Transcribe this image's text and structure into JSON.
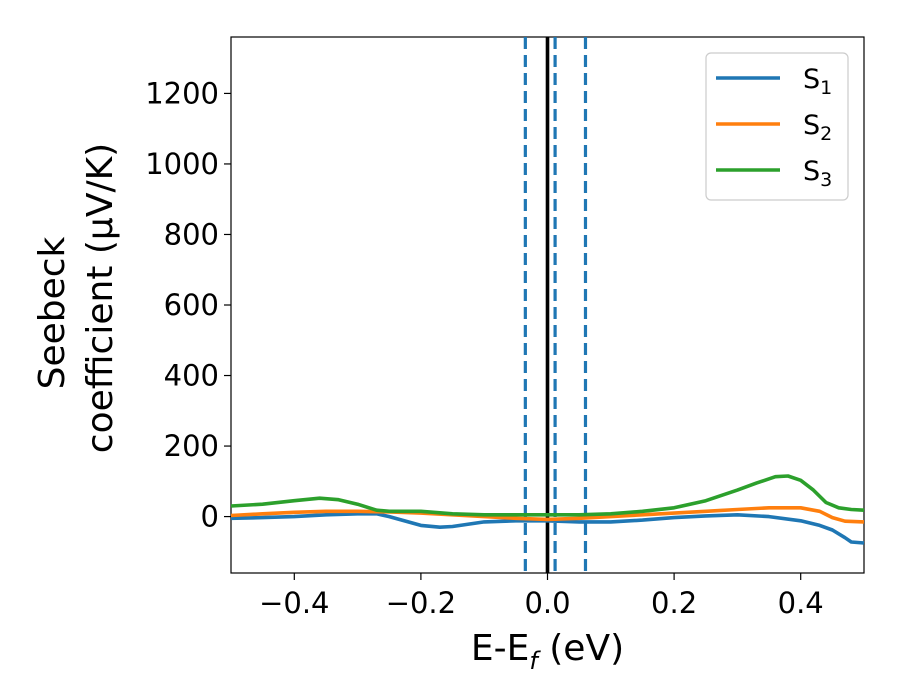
{
  "chart_data": {
    "type": "line",
    "xlabel": {
      "main": "E-E",
      "sub": "f",
      "tail": " (eV)"
    },
    "ylabel": {
      "line1": "Seebeck",
      "line2": "coefficient  (μV/K)"
    },
    "xlim": [
      -0.5,
      0.5
    ],
    "ylim": [
      -160,
      1360
    ],
    "xticks": [
      -0.4,
      -0.2,
      0.0,
      0.2,
      0.4
    ],
    "xtick_labels": [
      "−0.4",
      "−0.2",
      "0.0",
      "0.2",
      "0.4"
    ],
    "yticks": [
      0,
      200,
      400,
      600,
      800,
      1000,
      1200
    ],
    "ytick_labels": [
      "0",
      "200",
      "400",
      "600",
      "800",
      "1000",
      "1200"
    ],
    "legend_position": "top-right",
    "vlines": [
      {
        "x": -0.035,
        "style": "dashed",
        "color": "#1f77b4"
      },
      {
        "x": 0.0,
        "style": "solid",
        "color": "#000000"
      },
      {
        "x": 0.012,
        "style": "dashed",
        "color": "#1f77b4"
      },
      {
        "x": 0.06,
        "style": "dashed",
        "color": "#1f77b4"
      }
    ],
    "series": [
      {
        "name": "S",
        "sub": "1",
        "color": "#1f77b4",
        "x": [
          -0.5,
          -0.45,
          -0.4,
          -0.35,
          -0.3,
          -0.27,
          -0.25,
          -0.2,
          -0.17,
          -0.15,
          -0.1,
          -0.05,
          0.0,
          0.05,
          0.1,
          0.15,
          0.2,
          0.25,
          0.3,
          0.35,
          0.4,
          0.43,
          0.45,
          0.47,
          0.48,
          0.5
        ],
        "y": [
          -5,
          -3,
          0,
          5,
          8,
          8,
          0,
          -25,
          -30,
          -28,
          -15,
          -12,
          -12,
          -15,
          -15,
          -10,
          -3,
          2,
          5,
          0,
          -12,
          -25,
          -38,
          -60,
          -72,
          -75
        ]
      },
      {
        "name": "S",
        "sub": "2",
        "color": "#ff7f0e",
        "x": [
          -0.5,
          -0.45,
          -0.4,
          -0.35,
          -0.3,
          -0.25,
          -0.2,
          -0.15,
          -0.1,
          -0.05,
          0.0,
          0.05,
          0.1,
          0.15,
          0.2,
          0.25,
          0.3,
          0.35,
          0.4,
          0.43,
          0.45,
          0.47,
          0.5
        ],
        "y": [
          3,
          8,
          12,
          15,
          15,
          13,
          10,
          5,
          0,
          -5,
          -8,
          -5,
          0,
          5,
          10,
          15,
          20,
          25,
          25,
          15,
          -3,
          -13,
          -15
        ]
      },
      {
        "name": "S",
        "sub": "3",
        "color": "#2ca02c",
        "x": [
          -0.5,
          -0.45,
          -0.4,
          -0.36,
          -0.33,
          -0.3,
          -0.27,
          -0.25,
          -0.2,
          -0.15,
          -0.1,
          -0.05,
          0.0,
          0.05,
          0.1,
          0.15,
          0.2,
          0.25,
          0.3,
          0.33,
          0.36,
          0.38,
          0.4,
          0.42,
          0.44,
          0.46,
          0.48,
          0.5
        ],
        "y": [
          30,
          35,
          45,
          52,
          48,
          35,
          18,
          15,
          15,
          8,
          5,
          5,
          5,
          5,
          8,
          15,
          25,
          45,
          75,
          95,
          113,
          115,
          103,
          75,
          40,
          25,
          20,
          18
        ]
      }
    ]
  }
}
